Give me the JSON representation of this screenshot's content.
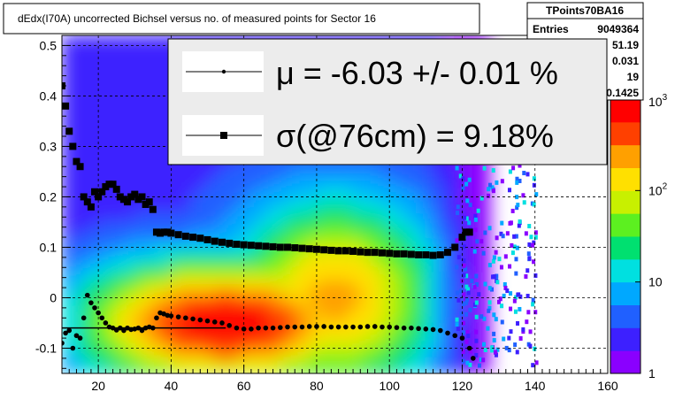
{
  "title": "dEdx(I70A) uncorrected Bichsel versus no. of measured points for Sector 16",
  "stats": {
    "name": "TPoints70BA16",
    "rows": [
      {
        "label": "Entries",
        "value": "9049364"
      },
      {
        "label": "",
        "value": "51.19"
      },
      {
        "label": "",
        "value": "0.031"
      },
      {
        "label": "",
        "value": "19"
      },
      {
        "label": "",
        "value": "0.1425"
      }
    ]
  },
  "legend": {
    "mu_text": "μ  = -6.03 +/-  0.01 %",
    "sigma_text": "σ(@76cm) =  9.18%"
  },
  "colors": {
    "frame": "#000000",
    "grid": "#000000",
    "background": "#ffffff",
    "palette": [
      "#8a00ff",
      "#3d20ff",
      "#2060ff",
      "#00a8ff",
      "#00e0e0",
      "#00e070",
      "#5cf020",
      "#c8f000",
      "#ffe000",
      "#ffa000",
      "#ff4000",
      "#ff0000"
    ]
  },
  "chart_data": {
    "type": "heatmap",
    "title": "dEdx(I70A) uncorrected Bichsel versus no. of measured points for Sector 16",
    "xlim": [
      10,
      160
    ],
    "ylim": [
      -0.15,
      0.52
    ],
    "x_ticks": [
      20,
      40,
      60,
      80,
      100,
      120,
      140,
      160
    ],
    "y_ticks": [
      -0.1,
      0,
      0.1,
      0.2,
      0.3,
      0.4,
      0.5
    ],
    "y_tick_labels": [
      "-0.1",
      "0",
      "0.1",
      "0.2",
      "0.3",
      "0.4",
      "0.5"
    ],
    "grid": true,
    "z_scale": "log",
    "z_range": [
      1,
      1000
    ],
    "z_tick_labels": [
      {
        "value": 1,
        "base": "1",
        "exp": ""
      },
      {
        "value": 10,
        "base": "10",
        "exp": ""
      },
      {
        "value": 100,
        "base": "10",
        "exp": "2"
      },
      {
        "value": 1000,
        "base": "10",
        "exp": "3"
      }
    ],
    "series": [
      {
        "name": "μ",
        "marker": "small-dot",
        "points": [
          [
            10,
            -0.09
          ],
          [
            11,
            -0.07
          ],
          [
            12,
            -0.065
          ],
          [
            13,
            -0.1
          ],
          [
            14,
            -0.075
          ],
          [
            15,
            -0.08
          ],
          [
            16,
            -0.04
          ],
          [
            17,
            0.005
          ],
          [
            18,
            -0.01
          ],
          [
            19,
            -0.02
          ],
          [
            20,
            -0.03
          ],
          [
            21,
            -0.04
          ],
          [
            22,
            -0.05
          ],
          [
            23,
            -0.058
          ],
          [
            24,
            -0.06
          ],
          [
            25,
            -0.064
          ],
          [
            26,
            -0.06
          ],
          [
            27,
            -0.065
          ],
          [
            28,
            -0.06
          ],
          [
            29,
            -0.063
          ],
          [
            30,
            -0.062
          ],
          [
            31,
            -0.06
          ],
          [
            32,
            -0.065
          ],
          [
            33,
            -0.06
          ],
          [
            34,
            -0.058
          ],
          [
            35,
            -0.06
          ],
          [
            36,
            -0.04
          ],
          [
            37,
            -0.03
          ],
          [
            38,
            -0.032
          ],
          [
            39,
            -0.035
          ],
          [
            40,
            -0.036
          ],
          [
            42,
            -0.038
          ],
          [
            44,
            -0.04
          ],
          [
            46,
            -0.042
          ],
          [
            48,
            -0.044
          ],
          [
            50,
            -0.046
          ],
          [
            52,
            -0.048
          ],
          [
            54,
            -0.05
          ],
          [
            56,
            -0.055
          ],
          [
            58,
            -0.06
          ],
          [
            60,
            -0.062
          ],
          [
            62,
            -0.062
          ],
          [
            64,
            -0.06
          ],
          [
            66,
            -0.06
          ],
          [
            68,
            -0.06
          ],
          [
            70,
            -0.059
          ],
          [
            72,
            -0.058
          ],
          [
            74,
            -0.058
          ],
          [
            76,
            -0.058
          ],
          [
            78,
            -0.057
          ],
          [
            80,
            -0.057
          ],
          [
            82,
            -0.057
          ],
          [
            84,
            -0.058
          ],
          [
            86,
            -0.058
          ],
          [
            88,
            -0.058
          ],
          [
            90,
            -0.058
          ],
          [
            92,
            -0.058
          ],
          [
            94,
            -0.057
          ],
          [
            96,
            -0.057
          ],
          [
            98,
            -0.058
          ],
          [
            100,
            -0.058
          ],
          [
            102,
            -0.059
          ],
          [
            104,
            -0.06
          ],
          [
            106,
            -0.06
          ],
          [
            108,
            -0.061
          ],
          [
            110,
            -0.062
          ],
          [
            112,
            -0.063
          ],
          [
            114,
            -0.065
          ],
          [
            116,
            -0.07
          ],
          [
            118,
            -0.075
          ],
          [
            120,
            -0.08
          ],
          [
            122,
            -0.1
          ],
          [
            123,
            -0.12
          ]
        ]
      },
      {
        "name": "σ(@76cm)",
        "marker": "square",
        "points": [
          [
            10,
            0.42
          ],
          [
            11,
            0.38
          ],
          [
            12,
            0.33
          ],
          [
            13,
            0.3
          ],
          [
            14,
            0.27
          ],
          [
            15,
            0.26
          ],
          [
            16,
            0.2
          ],
          [
            17,
            0.19
          ],
          [
            18,
            0.18
          ],
          [
            19,
            0.21
          ],
          [
            20,
            0.2
          ],
          [
            21,
            0.21
          ],
          [
            22,
            0.22
          ],
          [
            23,
            0.225
          ],
          [
            24,
            0.225
          ],
          [
            25,
            0.215
          ],
          [
            26,
            0.2
          ],
          [
            27,
            0.195
          ],
          [
            28,
            0.19
          ],
          [
            29,
            0.2
          ],
          [
            30,
            0.205
          ],
          [
            31,
            0.195
          ],
          [
            32,
            0.2
          ],
          [
            33,
            0.185
          ],
          [
            34,
            0.19
          ],
          [
            35,
            0.175
          ],
          [
            36,
            0.13
          ],
          [
            37,
            0.128
          ],
          [
            38,
            0.13
          ],
          [
            39,
            0.13
          ],
          [
            40,
            0.128
          ],
          [
            42,
            0.125
          ],
          [
            44,
            0.122
          ],
          [
            46,
            0.12
          ],
          [
            48,
            0.118
          ],
          [
            50,
            0.115
          ],
          [
            52,
            0.112
          ],
          [
            54,
            0.11
          ],
          [
            56,
            0.108
          ],
          [
            58,
            0.106
          ],
          [
            60,
            0.105
          ],
          [
            62,
            0.104
          ],
          [
            64,
            0.103
          ],
          [
            66,
            0.102
          ],
          [
            68,
            0.101
          ],
          [
            70,
            0.1
          ],
          [
            72,
            0.1
          ],
          [
            74,
            0.099
          ],
          [
            76,
            0.098
          ],
          [
            78,
            0.097
          ],
          [
            80,
            0.096
          ],
          [
            82,
            0.095
          ],
          [
            84,
            0.094
          ],
          [
            86,
            0.093
          ],
          [
            88,
            0.093
          ],
          [
            90,
            0.092
          ],
          [
            92,
            0.091
          ],
          [
            94,
            0.09
          ],
          [
            96,
            0.09
          ],
          [
            98,
            0.089
          ],
          [
            100,
            0.088
          ],
          [
            102,
            0.087
          ],
          [
            104,
            0.087
          ],
          [
            106,
            0.086
          ],
          [
            108,
            0.085
          ],
          [
            110,
            0.085
          ],
          [
            112,
            0.084
          ],
          [
            114,
            0.085
          ],
          [
            116,
            0.09
          ],
          [
            118,
            0.1
          ],
          [
            120,
            0.12
          ],
          [
            121,
            0.13
          ],
          [
            122,
            0.13
          ]
        ]
      }
    ],
    "fit_line": {
      "x": [
        10,
        55
      ],
      "y": -0.06
    }
  }
}
